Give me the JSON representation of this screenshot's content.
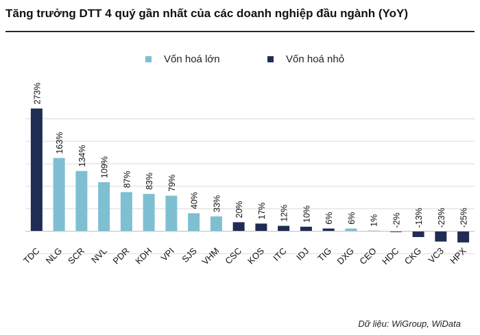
{
  "title": "Tăng trưởng DTT 4 quý gần nhất của các doanh nghiệp đầu ngành (YoY)",
  "source": "Dữ liệu: WiGroup, WiData",
  "colors": {
    "large_cap": "#7fbfd2",
    "small_cap": "#1f2d55",
    "grid": "#d9d9d9",
    "title_rule": "#1b2a4a"
  },
  "legend": [
    {
      "label": "Vốn hoá lớn",
      "color": "#7fbfd2"
    },
    {
      "label": "Vốn hoá nhỏ",
      "color": "#1f2d55"
    }
  ],
  "chart_data": {
    "type": "bar",
    "title": "Tăng trưởng DTT 4 quý gần nhất của các doanh nghiệp đầu ngành (YoY)",
    "xlabel": "",
    "ylabel": "",
    "ylim": [
      -25,
      275
    ],
    "grid": true,
    "legend_position": "top",
    "categories": [
      "TDC",
      "NLG",
      "SCR",
      "NVL",
      "PDR",
      "KDH",
      "VPI",
      "SJS",
      "VHM",
      "CSC",
      "KOS",
      "ITC",
      "IDJ",
      "TIG",
      "DXG",
      "CEO",
      "HDC",
      "CKG",
      "VC3",
      "HPX"
    ],
    "values": [
      273,
      163,
      134,
      109,
      87,
      83,
      79,
      40,
      33,
      20,
      17,
      12,
      10,
      6,
      6,
      1,
      -2,
      -13,
      -23,
      -25
    ],
    "value_labels": [
      "273%",
      "163%",
      "134%",
      "109%",
      "87%",
      "83%",
      "79%",
      "40%",
      "33%",
      "20%",
      "17%",
      "12%",
      "10%",
      "6%",
      "6%",
      "1%",
      "-2%",
      "-13%",
      "-23%",
      "-25%"
    ],
    "groups": [
      "Vốn hoá nhỏ",
      "Vốn hoá lớn",
      "Vốn hoá lớn",
      "Vốn hoá lớn",
      "Vốn hoá lớn",
      "Vốn hoá lớn",
      "Vốn hoá lớn",
      "Vốn hoá lớn",
      "Vốn hoá lớn",
      "Vốn hoá nhỏ",
      "Vốn hoá nhỏ",
      "Vốn hoá nhỏ",
      "Vốn hoá nhỏ",
      "Vốn hoá nhỏ",
      "Vốn hoá lớn",
      "Vốn hoá nhỏ",
      "Vốn hoá nhỏ",
      "Vốn hoá nhỏ",
      "Vốn hoá nhỏ",
      "Vốn hoá nhỏ"
    ],
    "series": [
      {
        "name": "Vốn hoá lớn"
      },
      {
        "name": "Vốn hoá nhỏ"
      }
    ]
  }
}
